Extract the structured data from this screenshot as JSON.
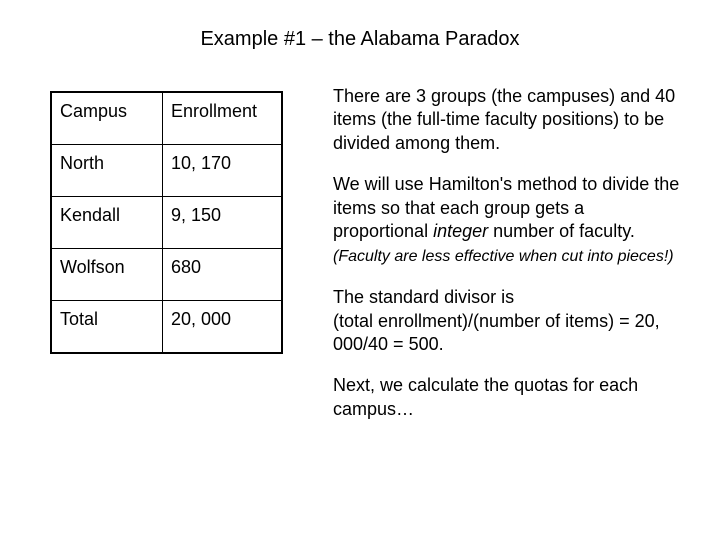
{
  "title": "Example #1 – the Alabama Paradox",
  "table": {
    "header": {
      "c1": "Campus",
      "c2": "Enrollment"
    },
    "rows": [
      {
        "c1": "North",
        "c2": "10, 170"
      },
      {
        "c1": "Kendall",
        "c2": "9, 150"
      },
      {
        "c1": "Wolfson",
        "c2": "680"
      },
      {
        "c1": "Total",
        "c2": "20, 000"
      }
    ]
  },
  "paragraphs": {
    "p1": "There are 3 groups (the campuses) and 40 items (the full-time faculty positions) to be divided among them.",
    "p2a": "We will use Hamilton's method to divide the items so that each group gets a proportional ",
    "p2em": "integer",
    "p2b": " number of faculty.",
    "p2note": "(Faculty are less effective when cut into pieces!)",
    "p3": "The standard divisor is\n(total enrollment)/(number of items) = 20, 000/40 = 500.",
    "p4": "Next, we calculate the quotas for each campus…"
  },
  "styling": {
    "background_color": "#ffffff",
    "text_color": "#000000",
    "border_color": "#000000",
    "title_fontsize": 20,
    "body_fontsize": 18,
    "note_fontsize": 16,
    "font_family": "Arial"
  }
}
